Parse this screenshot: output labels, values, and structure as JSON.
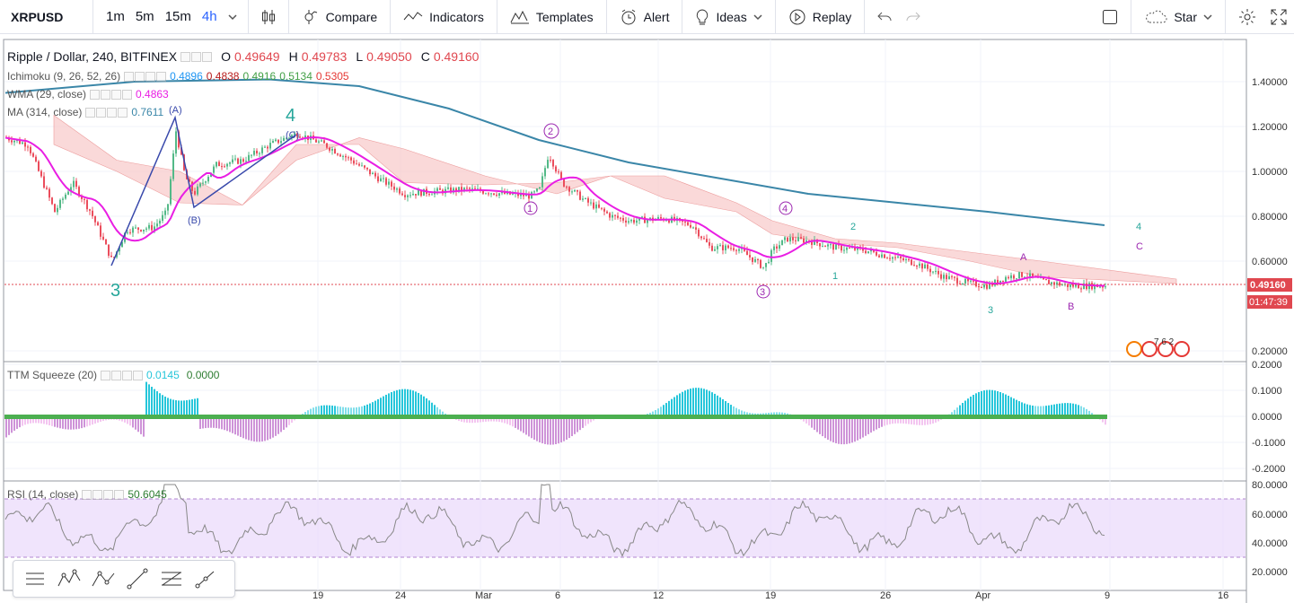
{
  "topbar": {
    "symbol": "XRPUSD",
    "intervals": [
      "1m",
      "5m",
      "15m",
      "4h"
    ],
    "active_interval": "4h",
    "compare": "Compare",
    "indicators": "Indicators",
    "templates": "Templates",
    "alert": "Alert",
    "ideas": "Ideas",
    "replay": "Replay",
    "star": "Star"
  },
  "main_legend": {
    "title": "Ripple / Dollar, 240, BITFINEX",
    "o_label": "O",
    "o_value": "0.49649",
    "h_label": "H",
    "h_value": "0.49783",
    "l_label": "L",
    "l_value": "0.49050",
    "c_label": "C",
    "c_value": "0.49160"
  },
  "ichimoku": {
    "name": "Ichimoku (9, 26, 52, 26)",
    "v1": "0.4896",
    "v2": "0.4838",
    "v3": "0.4916",
    "v4": "0.5134",
    "v5": "0.5305"
  },
  "wma": {
    "name": "WMA (29, close)",
    "value": "0.4863"
  },
  "ma": {
    "name": "MA (314, close)",
    "value": "0.7611"
  },
  "ttm": {
    "name": "TTM Squeeze (20)",
    "v1": "0.0145",
    "v2": "0.0000"
  },
  "rsi": {
    "name": "RSI (14, close)",
    "value": "50.6045"
  },
  "price_axis": {
    "ticks": [
      "1.40000",
      "1.20000",
      "1.00000",
      "0.80000",
      "0.60000",
      "0.20000"
    ],
    "last_price": "0.49160",
    "countdown": "01:47:39"
  },
  "ttm_axis": {
    "ticks": [
      "0.2000",
      "0.1000",
      "0.0000",
      "-0.1000",
      "-0.2000"
    ]
  },
  "rsi_axis": {
    "ticks": [
      "80.0000",
      "60.0000",
      "40.0000",
      "20.0000"
    ]
  },
  "time_axis": {
    "ticks": [
      "19",
      "24",
      "Mar",
      "6",
      "12",
      "19",
      "26",
      "Apr",
      "9",
      "16"
    ]
  },
  "wave_labels": {
    "w3_big": "3",
    "w4_big": "4",
    "wA": "(A)",
    "wB": "(B)",
    "wC": "(C)",
    "c1": "1",
    "c2": "2",
    "c3": "3",
    "c4": "4",
    "s1": "1",
    "s2": "2",
    "s3": "3",
    "s4": "4",
    "sA": "A",
    "sB": "B",
    "sC": "C"
  },
  "events_text": "7  6  2",
  "colors": {
    "up": "#53b987",
    "down": "#eb4d5c",
    "wma": "#e91ee3",
    "ma": "#3a86a8",
    "kumo_bear": "#f8c9c9",
    "kumo_bull": "#c8e6c9",
    "wave_teal": "#26a69a",
    "wave_purple": "#9c27b0",
    "wave_blue": "#3949ab"
  }
}
